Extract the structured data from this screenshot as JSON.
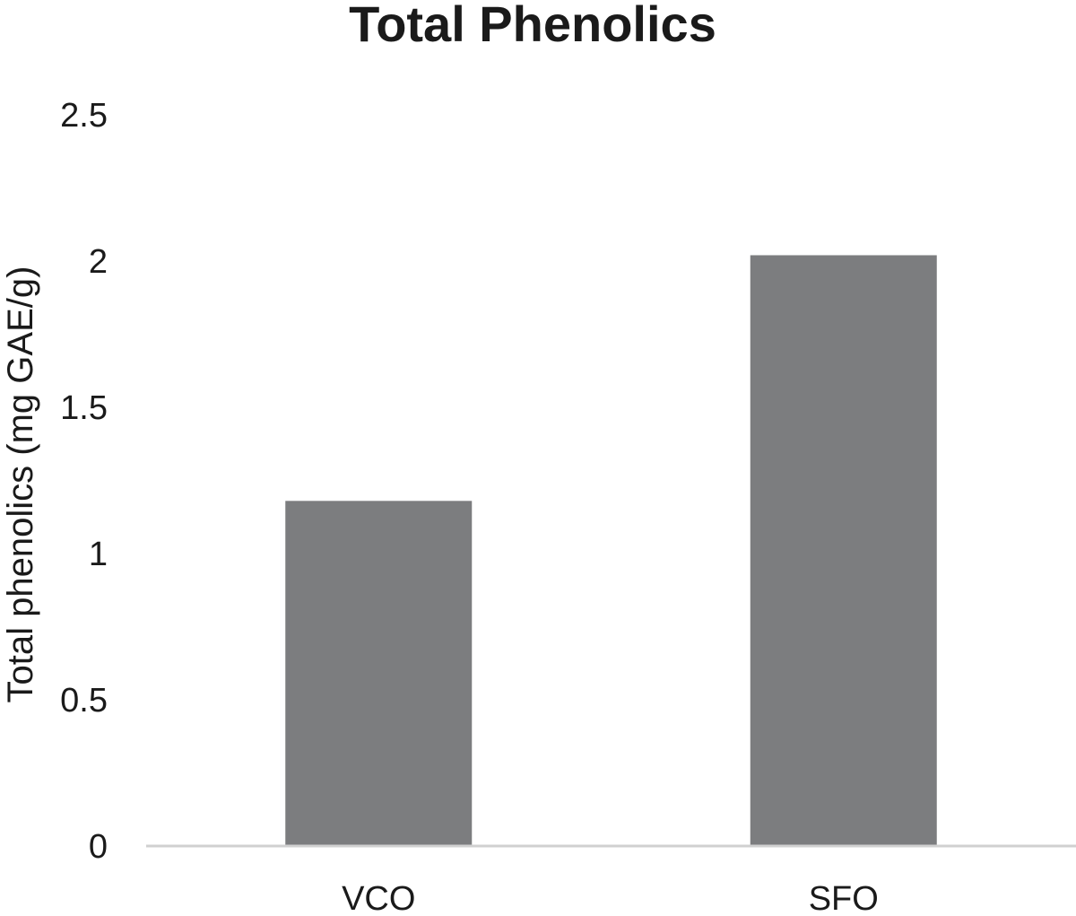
{
  "chart_data": {
    "type": "bar",
    "title": "Total Phenolics",
    "xlabel": "",
    "ylabel": "Total phenolics (mg GAE/g)",
    "categories": [
      "VCO",
      "SFO"
    ],
    "values": [
      1.18,
      2.02
    ],
    "ylim": [
      0,
      2.5
    ],
    "yticks": [
      "0",
      "0.5",
      "1",
      "1.5",
      "2",
      "2.5"
    ],
    "grid": false,
    "legend": "none",
    "colors": {
      "bar": "#7c7d7f",
      "axis": "#d0d0d0",
      "text": "#1a1a1a"
    }
  }
}
